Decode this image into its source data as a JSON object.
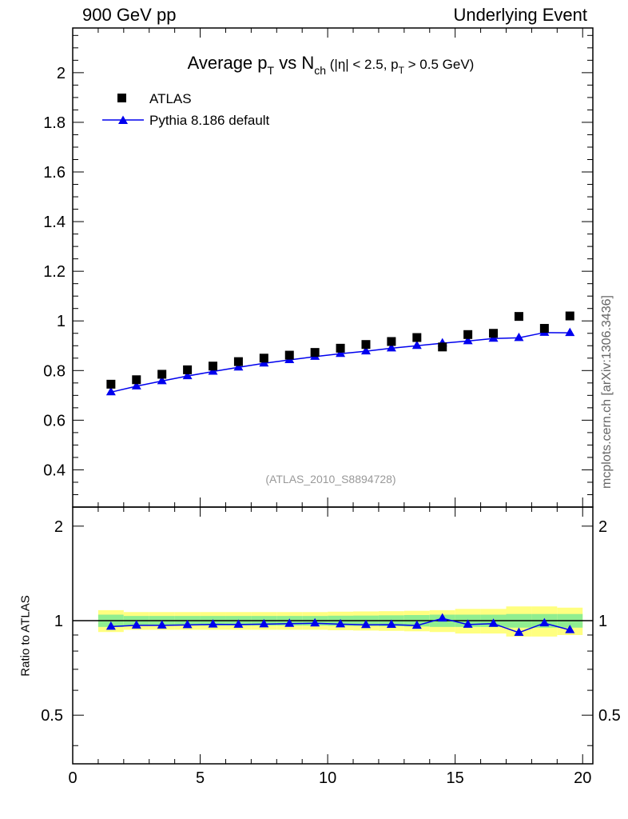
{
  "header": {
    "left": "900 GeV pp",
    "right": "Underlying Event"
  },
  "side_label": "mcplots.cern.ch [arXiv:1306.3436]",
  "colors": {
    "data": "#000000",
    "mc": "#0000ee",
    "band_inner": "#90ee90",
    "band_outer": "#ffff80"
  },
  "chart_data": {
    "type": "scatter",
    "title": {
      "part1": "Average p",
      "sub1": "T",
      "part2": " vs N",
      "sub2": "ch",
      "cond1": " (|η| < 2.5, p",
      "sub3": "T",
      "cond2": " > 0.5 GeV)"
    },
    "analysis_tag": "(ATLAS_2010_S8894728)",
    "legend": [
      {
        "label": "ATLAS",
        "marker": "square"
      },
      {
        "label": "Pythia 8.186 default",
        "marker": "triangle"
      }
    ],
    "x_ticks": [
      "0",
      "5",
      "10",
      "15",
      "20"
    ],
    "xlim": [
      0,
      20.4
    ],
    "main_panel": {
      "ylim": [
        0.25,
        2.18
      ],
      "y_ticks": [
        "0.4",
        "0.6",
        "0.8",
        "1",
        "1.2",
        "1.4",
        "1.6",
        "1.8",
        "2"
      ],
      "series": [
        {
          "name": "ATLAS",
          "x": [
            1.5,
            2.5,
            3.5,
            4.5,
            5.5,
            6.5,
            7.5,
            8.5,
            9.5,
            10.5,
            11.5,
            12.5,
            13.5,
            14.5,
            15.5,
            16.5,
            17.5,
            18.5,
            19.5
          ],
          "values": [
            0.745,
            0.763,
            0.785,
            0.803,
            0.818,
            0.836,
            0.85,
            0.862,
            0.873,
            0.89,
            0.905,
            0.917,
            0.933,
            0.895,
            0.945,
            0.95,
            1.018,
            0.97,
            1.02
          ]
        },
        {
          "name": "Pythia 8.186 default",
          "x": [
            1.5,
            2.5,
            3.5,
            4.5,
            5.5,
            6.5,
            7.5,
            8.5,
            9.5,
            10.5,
            11.5,
            12.5,
            13.5,
            14.5,
            15.5,
            16.5,
            17.5,
            18.5,
            19.5
          ],
          "values": [
            0.713,
            0.737,
            0.758,
            0.778,
            0.796,
            0.813,
            0.829,
            0.843,
            0.856,
            0.868,
            0.878,
            0.89,
            0.9,
            0.91,
            0.919,
            0.929,
            0.932,
            0.953,
            0.952
          ]
        }
      ]
    },
    "ratio_panel": {
      "ylabel": "Ratio to ATLAS",
      "ylim": [
        0.35,
        2.3
      ],
      "log_scale": true,
      "y_ticks": [
        "0.5",
        "1",
        "2"
      ],
      "mc_ratio": [
        0.958,
        0.966,
        0.966,
        0.969,
        0.973,
        0.972,
        0.975,
        0.978,
        0.981,
        0.975,
        0.97,
        0.971,
        0.965,
        1.017,
        0.972,
        0.978,
        0.916,
        0.982,
        0.934
      ],
      "band_edges": [
        1,
        2,
        3,
        4,
        5,
        6,
        7,
        8,
        9,
        10,
        11,
        12,
        13,
        14,
        15,
        16,
        17,
        18,
        19,
        20
      ],
      "band_inner_half_width": [
        0.045,
        0.035,
        0.035,
        0.035,
        0.035,
        0.035,
        0.035,
        0.035,
        0.035,
        0.037,
        0.038,
        0.04,
        0.042,
        0.045,
        0.045,
        0.045,
        0.05,
        0.05,
        0.05
      ],
      "band_outer_half_width": [
        0.08,
        0.065,
        0.065,
        0.065,
        0.065,
        0.065,
        0.065,
        0.065,
        0.065,
        0.068,
        0.07,
        0.072,
        0.075,
        0.08,
        0.09,
        0.09,
        0.11,
        0.11,
        0.1
      ]
    }
  }
}
